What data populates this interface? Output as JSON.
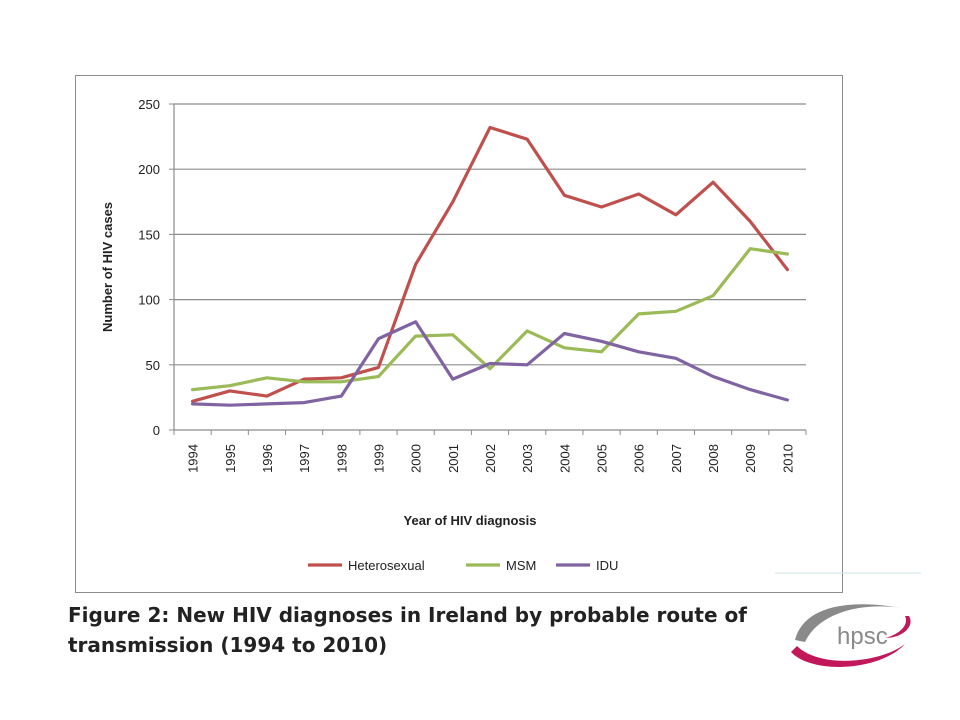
{
  "chart_data": {
    "type": "line",
    "x": [
      "1994",
      "1995",
      "1996",
      "1997",
      "1998",
      "1999",
      "2000",
      "2001",
      "2002",
      "2003",
      "2004",
      "2005",
      "2006",
      "2007",
      "2008",
      "2009",
      "2010"
    ],
    "series": [
      {
        "name": "Heterosexual",
        "color": "#c0504d",
        "values": [
          22,
          30,
          26,
          39,
          40,
          48,
          127,
          175,
          232,
          223,
          180,
          171,
          181,
          165,
          190,
          160,
          123
        ]
      },
      {
        "name": "MSM",
        "color": "#9bbb59",
        "values": [
          31,
          34,
          40,
          37,
          37,
          41,
          72,
          73,
          47,
          76,
          63,
          60,
          89,
          91,
          103,
          139,
          135
        ]
      },
      {
        "name": "IDU",
        "color": "#8064a2",
        "values": [
          20,
          19,
          20,
          21,
          26,
          70,
          83,
          39,
          51,
          50,
          74,
          68,
          60,
          55,
          41,
          31,
          23
        ]
      }
    ],
    "xlabel": "Year of HIV diagnosis",
    "ylabel": "Number of HIV cases",
    "yticks": [
      "0",
      "50",
      "100",
      "150",
      "200",
      "250"
    ],
    "ylim": [
      0,
      250
    ],
    "grid": true,
    "legend_position": "bottom"
  },
  "caption": {
    "line1": "Figure 2: New HIV diagnoses in Ireland by probable route of",
    "line2": "transmission (1994 to 2010)"
  },
  "logo": {
    "text": "hpsc",
    "colors": {
      "accent": "#c2185b",
      "grey": "#8a8a8a"
    }
  }
}
